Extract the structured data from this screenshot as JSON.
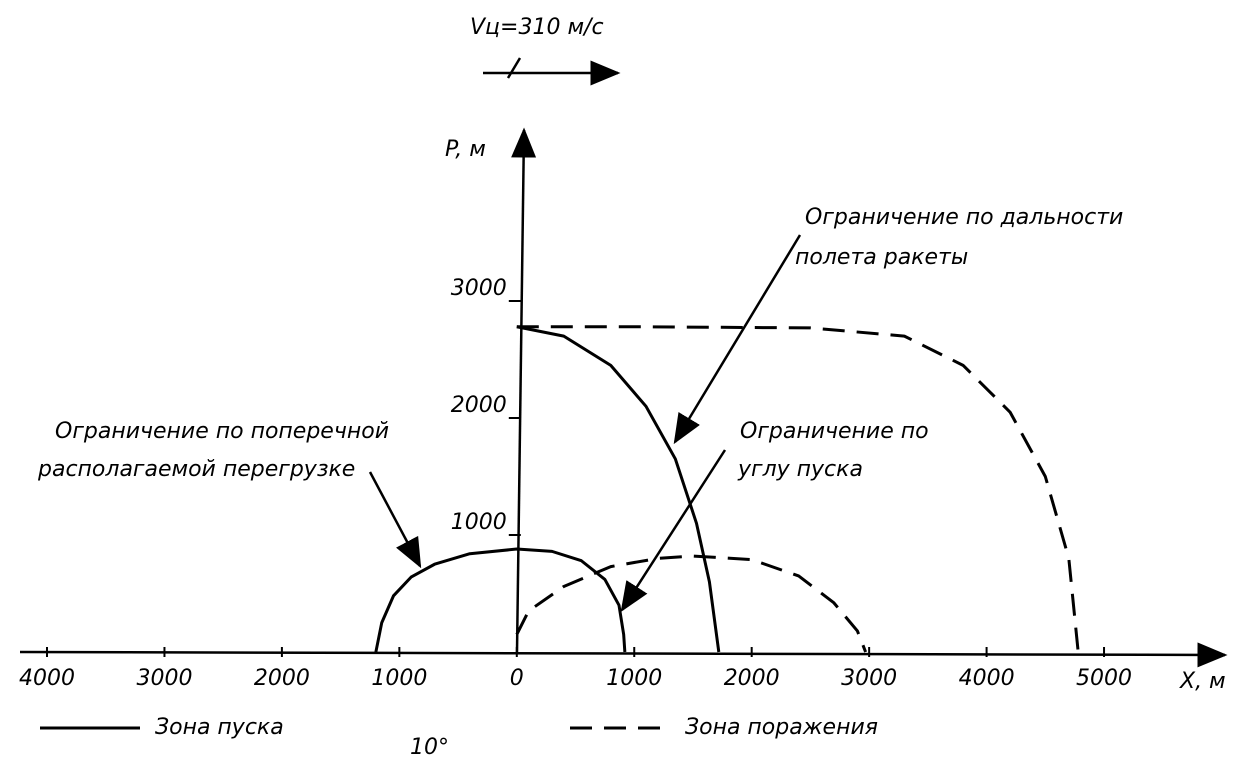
{
  "chart_data": {
    "type": "line",
    "speed_label": "Vц=310 м/с",
    "y_label": "P, м",
    "x_label": "X, м",
    "note": "10°",
    "xlim": [
      -4230,
      6030
    ],
    "ylim": [
      0,
      4376
    ],
    "xticks": [
      {
        "value": -4000,
        "label": "4000"
      },
      {
        "value": -3000,
        "label": "3000"
      },
      {
        "value": -2000,
        "label": "2000"
      },
      {
        "value": -1000,
        "label": "1000"
      },
      0,
      1000,
      2000,
      3000,
      4000,
      5000
    ],
    "yticks": [
      1000,
      2000,
      3000
    ],
    "series": [
      {
        "name": "Зона пуска",
        "color": "#000000",
        "dashed": false,
        "x": [
          -1200,
          -1150,
          -1050,
          -900,
          -700,
          -400,
          0,
          300,
          550,
          750,
          870,
          910,
          920,
          null,
          0,
          400,
          800,
          1100,
          1350,
          1530,
          1640,
          1720
        ],
        "values": [
          0,
          250,
          480,
          640,
          750,
          840,
          880,
          860,
          780,
          620,
          400,
          150,
          0,
          null,
          2780,
          2700,
          2450,
          2100,
          1650,
          1100,
          600,
          0
        ]
      },
      {
        "name": "Зона поражения",
        "color": "#000000",
        "dashed": true,
        "x": [
          0,
          1000,
          2500,
          3300,
          3800,
          4200,
          4500,
          4700,
          4780,
          null,
          0,
          100,
          400,
          800,
          1200,
          1500,
          2000,
          2400,
          2700,
          2900,
          2970
        ],
        "values": [
          2780,
          2780,
          2770,
          2700,
          2450,
          2050,
          1500,
          800,
          0,
          null,
          150,
          350,
          560,
          730,
          800,
          820,
          790,
          650,
          420,
          180,
          0
        ]
      }
    ],
    "annotations": [
      {
        "lines": [
          "Ограничение по дальности",
          "полета ракеты"
        ]
      },
      {
        "lines": [
          "Ограничение по",
          "углу пуска"
        ]
      },
      {
        "lines": [
          "Ограничение по поперечной",
          "располагаемой перегрузке"
        ]
      }
    ]
  }
}
